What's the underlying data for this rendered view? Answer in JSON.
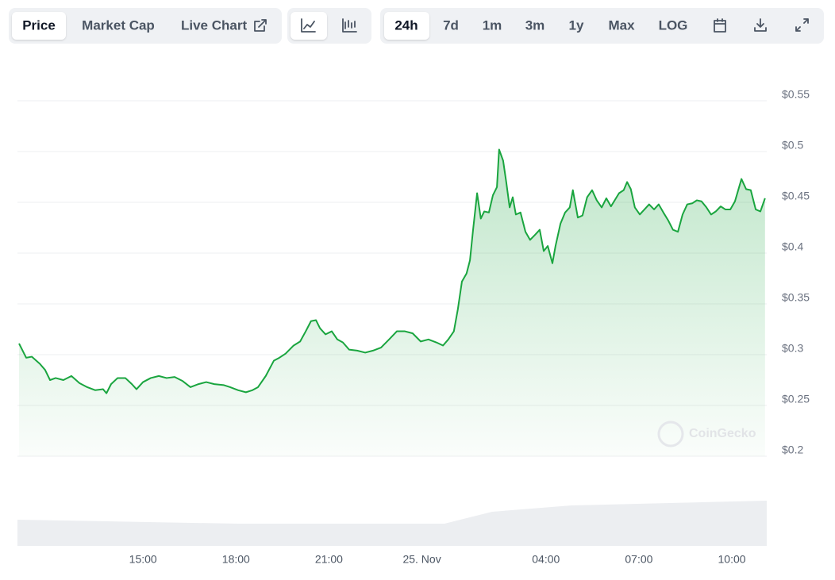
{
  "toolbar": {
    "tabs": [
      "Price",
      "Market Cap",
      "Live Chart"
    ],
    "ranges": [
      "24h",
      "7d",
      "1m",
      "3m",
      "1y",
      "Max",
      "LOG"
    ]
  },
  "watermark": "CoinGecko",
  "chart_data": {
    "type": "line",
    "color": "#1aa53f",
    "x": [
      11.0,
      11.23,
      11.41,
      11.67,
      11.84,
      12.0,
      12.18,
      12.43,
      12.69,
      12.95,
      13.2,
      13.46,
      13.71,
      13.82,
      13.97,
      14.18,
      14.43,
      14.64,
      14.79,
      15.0,
      15.25,
      15.51,
      15.76,
      16.02,
      16.28,
      16.53,
      16.79,
      17.04,
      17.3,
      17.61,
      17.81,
      18.07,
      18.32,
      18.53,
      18.71,
      18.96,
      19.22,
      19.4,
      19.6,
      19.86,
      20.07,
      20.25,
      20.42,
      20.58,
      20.71,
      20.89,
      21.09,
      21.27,
      21.45,
      21.65,
      21.91,
      22.17,
      22.42,
      22.68,
      22.94,
      23.19,
      23.45,
      23.7,
      23.96,
      24.21,
      24.47,
      24.68,
      24.85,
      25.03,
      25.16,
      25.29,
      25.44,
      25.55,
      25.65,
      25.78,
      25.9,
      26.01,
      26.16,
      26.29,
      26.42,
      26.49,
      26.62,
      26.72,
      26.83,
      26.93,
      27.03,
      27.18,
      27.34,
      27.49,
      27.65,
      27.8,
      27.93,
      28.06,
      28.21,
      28.31,
      28.47,
      28.62,
      28.77,
      28.87,
      29.03,
      29.18,
      29.33,
      29.49,
      29.64,
      29.8,
      29.95,
      30.1,
      30.26,
      30.36,
      30.51,
      30.62,
      30.74,
      30.87,
      31.03,
      31.18,
      31.33,
      31.49,
      31.64,
      31.79,
      31.95,
      32.1,
      32.26,
      32.41,
      32.56,
      32.72,
      32.87,
      33.02,
      33.18,
      33.33,
      33.48,
      33.64,
      33.79,
      33.95,
      34.1,
      34.31,
      34.46,
      34.61,
      34.77,
      34.92,
      35.07
    ],
    "values": [
      0.311,
      0.297,
      0.298,
      0.291,
      0.285,
      0.275,
      0.277,
      0.275,
      0.279,
      0.272,
      0.268,
      0.265,
      0.266,
      0.262,
      0.271,
      0.277,
      0.277,
      0.271,
      0.266,
      0.273,
      0.277,
      0.279,
      0.277,
      0.278,
      0.274,
      0.268,
      0.271,
      0.273,
      0.271,
      0.27,
      0.268,
      0.265,
      0.263,
      0.265,
      0.268,
      0.279,
      0.294,
      0.297,
      0.301,
      0.309,
      0.313,
      0.323,
      0.333,
      0.334,
      0.326,
      0.32,
      0.323,
      0.315,
      0.312,
      0.305,
      0.304,
      0.302,
      0.304,
      0.307,
      0.315,
      0.323,
      0.323,
      0.321,
      0.313,
      0.315,
      0.312,
      0.309,
      0.315,
      0.323,
      0.345,
      0.372,
      0.38,
      0.393,
      0.423,
      0.459,
      0.434,
      0.441,
      0.44,
      0.457,
      0.465,
      0.502,
      0.491,
      0.47,
      0.445,
      0.455,
      0.438,
      0.44,
      0.421,
      0.413,
      0.418,
      0.423,
      0.402,
      0.407,
      0.39,
      0.407,
      0.429,
      0.44,
      0.445,
      0.462,
      0.435,
      0.437,
      0.455,
      0.462,
      0.452,
      0.445,
      0.454,
      0.446,
      0.454,
      0.459,
      0.462,
      0.47,
      0.463,
      0.445,
      0.438,
      0.443,
      0.448,
      0.443,
      0.448,
      0.44,
      0.432,
      0.423,
      0.421,
      0.438,
      0.448,
      0.449,
      0.452,
      0.451,
      0.445,
      0.438,
      0.441,
      0.446,
      0.443,
      0.443,
      0.451,
      0.473,
      0.463,
      0.462,
      0.443,
      0.441,
      0.454
    ],
    "xlim": [
      11,
      35.1
    ],
    "xticks": [
      {
        "value": 15,
        "label": "15:00"
      },
      {
        "value": 18,
        "label": "18:00"
      },
      {
        "value": 21,
        "label": "21:00"
      },
      {
        "value": 24,
        "label": "25. Nov"
      },
      {
        "value": 28,
        "label": "04:00"
      },
      {
        "value": 31,
        "label": "07:00"
      },
      {
        "value": 34,
        "label": "10:00"
      }
    ],
    "ylim": [
      0.2,
      0.55
    ],
    "yticks": [
      {
        "value": 0.2,
        "label": "$0.2"
      },
      {
        "value": 0.25,
        "label": "$0.25"
      },
      {
        "value": 0.3,
        "label": "$0.3"
      },
      {
        "value": 0.35,
        "label": "$0.35"
      },
      {
        "value": 0.4,
        "label": "$0.4"
      },
      {
        "value": 0.45,
        "label": "$0.45"
      },
      {
        "value": 0.5,
        "label": "$0.5"
      },
      {
        "value": 0.55,
        "label": "$0.55"
      }
    ],
    "grid": true
  }
}
